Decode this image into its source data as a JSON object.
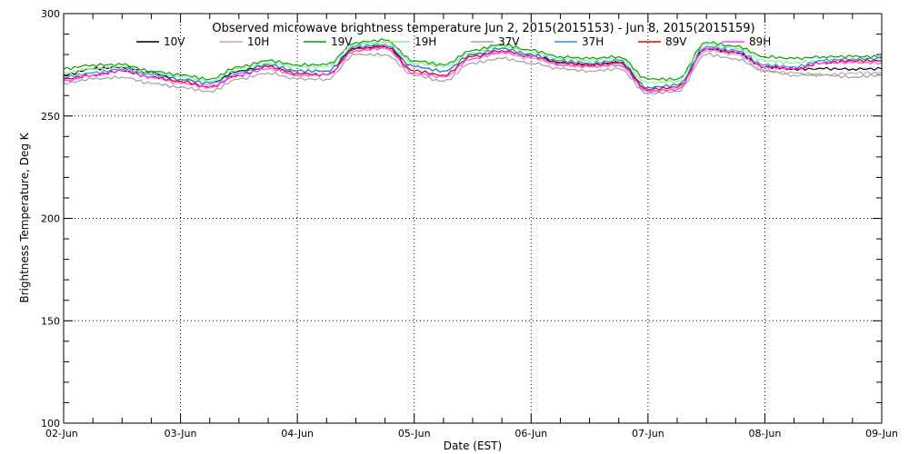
{
  "chart_data": {
    "type": "line",
    "title": "Observed microwave brightness temperature Jun  2, 2015(2015153) - Jun  8, 2015(2015159)",
    "xlabel": "Date (EST)",
    "ylabel": "Brightness Temperature, Deg K",
    "ylim": [
      100,
      300
    ],
    "yticks": [
      100,
      150,
      200,
      250,
      300
    ],
    "xlim": [
      0,
      7
    ],
    "xticks": [
      0,
      1,
      2,
      3,
      4,
      5,
      6,
      7
    ],
    "xtick_labels": [
      "02-Jun",
      "03-Jun",
      "04-Jun",
      "05-Jun",
      "06-Jun",
      "07-Jun",
      "08-Jun",
      "09-Jun"
    ],
    "grid": true,
    "legend_placement": "top",
    "x": [
      0,
      0.25,
      0.5,
      0.75,
      1.0,
      1.25,
      1.5,
      1.75,
      2.0,
      2.25,
      2.5,
      2.75,
      3.0,
      3.25,
      3.5,
      3.75,
      4.0,
      4.25,
      4.5,
      4.75,
      5.0,
      5.25,
      5.5,
      5.75,
      6.0,
      6.25,
      6.5,
      6.75,
      7.0
    ],
    "series": [
      {
        "name": "10V",
        "color": "#000000",
        "values": [
          270,
          273,
          274,
          271,
          268,
          266,
          272,
          275,
          272,
          272,
          283,
          284,
          274,
          272,
          280,
          283,
          280,
          276,
          275,
          276,
          264,
          265,
          283,
          281,
          274,
          273,
          273,
          273,
          273
        ]
      },
      {
        "name": "10H",
        "color": "#c8a0c8",
        "values": [
          267,
          270,
          272,
          269,
          267,
          265,
          270,
          274,
          270,
          270,
          282,
          283,
          272,
          270,
          279,
          281,
          278,
          275,
          274,
          275,
          262,
          263,
          282,
          280,
          272,
          271,
          270,
          271,
          271
        ]
      },
      {
        "name": "19V",
        "color": "#00a000",
        "values": [
          273,
          275,
          275,
          272,
          270,
          268,
          274,
          277,
          275,
          275,
          286,
          287,
          277,
          275,
          282,
          285,
          282,
          279,
          278,
          279,
          268,
          268,
          286,
          284,
          279,
          278,
          279,
          279,
          279
        ]
      },
      {
        "name": "19H",
        "color": "#90ee90",
        "values": [
          271,
          273,
          274,
          271,
          269,
          267,
          273,
          276,
          274,
          274,
          285,
          286,
          276,
          274,
          281,
          284,
          281,
          278,
          277,
          278,
          266,
          267,
          285,
          283,
          277,
          276,
          277,
          277,
          277
        ]
      },
      {
        "name": "37V",
        "color": "#a0a0a0",
        "values": [
          266,
          268,
          269,
          266,
          264,
          262,
          268,
          271,
          268,
          268,
          280,
          280,
          270,
          267,
          276,
          278,
          276,
          273,
          272,
          273,
          261,
          262,
          280,
          278,
          272,
          270,
          270,
          269,
          270
        ]
      },
      {
        "name": "37H",
        "color": "#1e90ff",
        "values": [
          269,
          271,
          273,
          270,
          268,
          266,
          271,
          275,
          272,
          272,
          284,
          285,
          274,
          272,
          280,
          283,
          280,
          277,
          276,
          277,
          264,
          265,
          284,
          282,
          275,
          274,
          277,
          278,
          278
        ]
      },
      {
        "name": "89V",
        "color": "#e00000",
        "values": [
          268,
          270,
          272,
          269,
          267,
          264,
          270,
          274,
          271,
          270,
          283,
          284,
          272,
          270,
          279,
          282,
          279,
          276,
          275,
          276,
          263,
          264,
          283,
          281,
          274,
          273,
          276,
          277,
          277
        ]
      },
      {
        "name": "89H",
        "color": "#ff40ff",
        "values": [
          267,
          270,
          272,
          269,
          266,
          264,
          270,
          273,
          270,
          270,
          282,
          283,
          271,
          269,
          278,
          281,
          279,
          275,
          274,
          275,
          262,
          263,
          283,
          281,
          274,
          273,
          276,
          276,
          276
        ]
      }
    ]
  }
}
